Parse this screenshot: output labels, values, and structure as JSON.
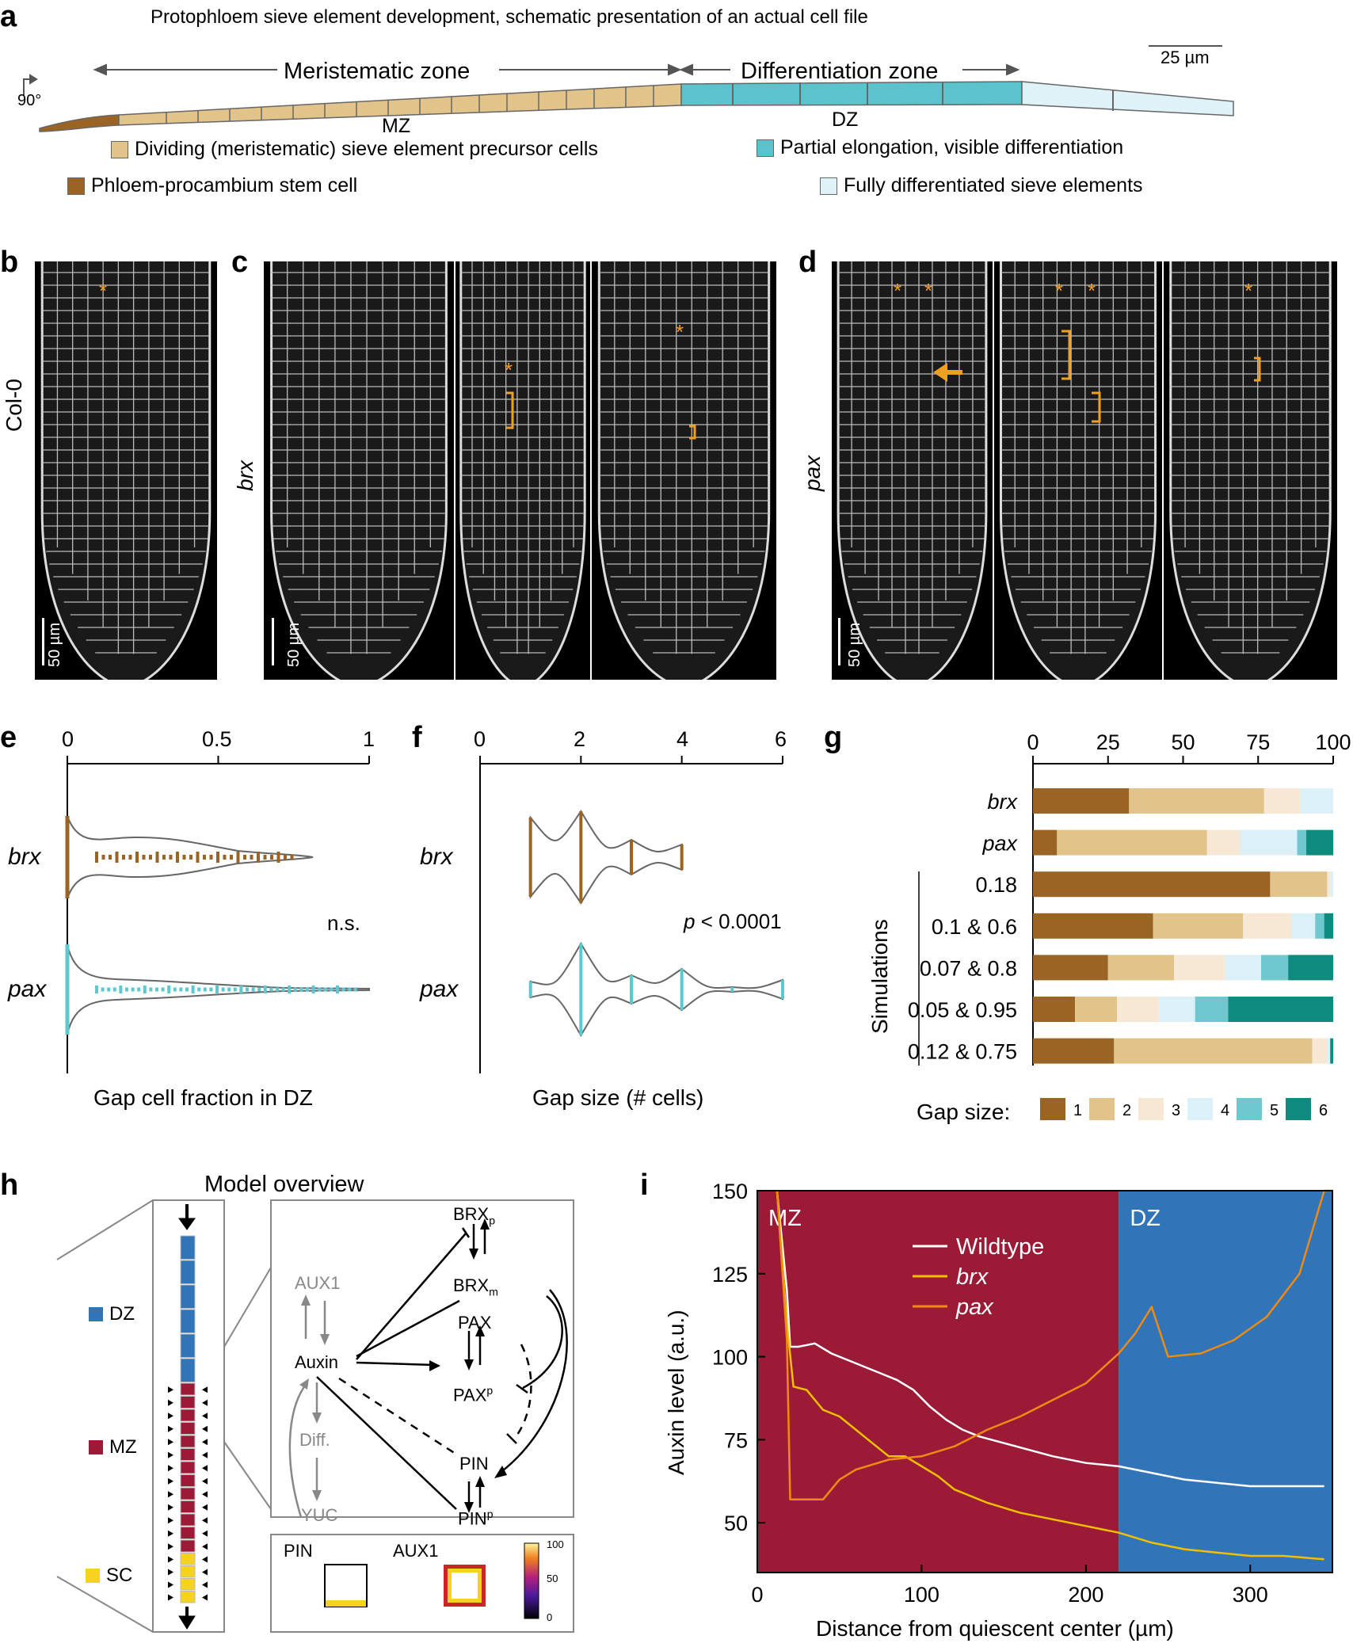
{
  "panel_labels": {
    "a": "a",
    "b": "b",
    "c": "c",
    "d": "d",
    "e": "e",
    "f": "f",
    "g": "g",
    "h": "h",
    "i": "i"
  },
  "panel_a": {
    "title": "Protophloem sieve element development, schematic presentation of an actual cell file",
    "rotation": "90°",
    "meristematic_zone": "Meristematic zone",
    "differentiation_zone": "Differentiation zone",
    "scale": "25 µm",
    "mz": "MZ",
    "dz": "DZ",
    "legend": [
      {
        "label": "Dividing (meristematic) sieve element precursor cells",
        "color": "#e2c48a"
      },
      {
        "label": "Partial elongation, visible differentiation",
        "color": "#5cc2cc"
      },
      {
        "label": "Phloem-procambium stem cell",
        "color": "#9a6424"
      },
      {
        "label": "Fully differentiated sieve elements",
        "color": "#dff2f7"
      }
    ]
  },
  "panel_b": {
    "genotype": "Col-0",
    "scale": "50 µm"
  },
  "panel_c": {
    "genotype": "brx",
    "scale": "50 µm"
  },
  "panel_d": {
    "genotype": "pax",
    "scale": "50 µm"
  },
  "colors": {
    "brx": "#9a6424",
    "pax": "#5cc8d0",
    "annotation": "#f0a020"
  },
  "panel_e": {
    "chart_data": {
      "type": "violin",
      "xlabel": "Gap cell fraction in DZ",
      "ticks": [
        "0",
        "0.5",
        "1"
      ],
      "xlim": [
        0,
        1
      ],
      "categories": [
        "brx",
        "pax"
      ],
      "annotation": "n.s."
    }
  },
  "panel_f": {
    "chart_data": {
      "type": "violin",
      "xlabel": "Gap size (# cells)",
      "ticks": [
        "0",
        "2",
        "4",
        "6"
      ],
      "xlim": [
        0,
        6
      ],
      "categories": [
        "brx",
        "pax"
      ],
      "annotation_p": "p",
      "annotation_rest": " < 0.0001"
    }
  },
  "panel_g": {
    "chart_data": {
      "type": "bar",
      "stacked": true,
      "orientation": "horizontal",
      "ticks": [
        "0",
        "25",
        "50",
        "75",
        "100"
      ],
      "xlim": [
        0,
        100
      ],
      "categories": [
        "brx",
        "pax",
        "0.18",
        "0.1 & 0.6",
        "0.07 & 0.8",
        "0.05 & 0.95",
        "0.12 & 0.75"
      ],
      "group_label": "Simulations",
      "legend_title": "Gap size:",
      "series": [
        {
          "name": "1",
          "color": "#9a6424",
          "values": [
            32,
            8,
            79,
            40,
            25,
            14,
            27
          ]
        },
        {
          "name": "2",
          "color": "#e2c48a",
          "values": [
            45,
            50,
            19,
            30,
            22,
            14,
            66
          ]
        },
        {
          "name": "3",
          "color": "#f6e8d4",
          "values": [
            12,
            11,
            1,
            16,
            17,
            14,
            5
          ]
        },
        {
          "name": "4",
          "color": "#dcf1f7",
          "values": [
            11,
            19,
            1,
            8,
            12,
            12,
            1
          ]
        },
        {
          "name": "5",
          "color": "#6fc7cf",
          "values": [
            0,
            3,
            0,
            3,
            9,
            11,
            0
          ]
        },
        {
          "name": "6",
          "color": "#0e8a7e",
          "values": [
            0,
            9,
            0,
            3,
            15,
            35,
            1
          ]
        }
      ]
    }
  },
  "panel_h": {
    "title": "Model overview",
    "dz": "DZ",
    "mz": "MZ",
    "sc": "SC",
    "nodes": {
      "brx_p": "BRX",
      "brx_p_sub": "p",
      "aux1": "AUX1",
      "brx_m": "BRX",
      "brx_m_sub": "m",
      "pax": "PAX",
      "auxin": "Auxin",
      "pax_p": "PAX",
      "pax_p_sup": "p",
      "diff": "Diff.",
      "pin": "PIN",
      "yuc": "YUC",
      "pin_p": "PIN",
      "pin_p_sup": "p"
    },
    "inset_pin": "PIN",
    "inset_aux1": "AUX1",
    "colorbar_ticks": [
      "100",
      "50",
      "0"
    ],
    "colors": {
      "dz": "#3274b8",
      "mz": "#9b1b36",
      "sc": "#f5d21f",
      "gray": "#808080"
    }
  },
  "panel_i": {
    "chart_data": {
      "type": "line",
      "xlabel": "Distance from quiescent center (µm)",
      "ylabel": "Auxin level (a.u.)",
      "xlim": [
        0,
        350
      ],
      "ylim": [
        35,
        150
      ],
      "xticks": [
        "0",
        "100",
        "200",
        "300"
      ],
      "yticks": [
        "50",
        "75",
        "100",
        "125",
        "150"
      ],
      "zones": [
        {
          "label": "MZ",
          "from": 0,
          "to": 220,
          "color": "#9b1b36"
        },
        {
          "label": "DZ",
          "from": 220,
          "to": 350,
          "color": "#3274b8"
        }
      ],
      "series": [
        {
          "name": "Wildtype",
          "color": "#ffffff",
          "x": [
            12,
            18,
            20,
            25,
            35,
            45,
            55,
            65,
            75,
            85,
            95,
            105,
            115,
            125,
            135,
            150,
            165,
            180,
            200,
            220,
            240,
            260,
            280,
            300,
            320,
            345
          ],
          "y": [
            150,
            120,
            103,
            103,
            104,
            101,
            99,
            97,
            95,
            93,
            90,
            85,
            81,
            78,
            76,
            74,
            72,
            70,
            68,
            67,
            65,
            63,
            62,
            61,
            61,
            61
          ]
        },
        {
          "name": "brx",
          "color": "#f0c000",
          "x": [
            12,
            18,
            22,
            30,
            40,
            50,
            60,
            70,
            80,
            90,
            100,
            110,
            120,
            140,
            160,
            180,
            200,
            220,
            240,
            260,
            280,
            300,
            320,
            345
          ],
          "y": [
            150,
            110,
            91,
            90,
            84,
            82,
            78,
            74,
            70,
            70,
            67,
            64,
            60,
            56,
            53,
            51,
            49,
            47,
            44,
            42,
            41,
            40,
            40,
            39
          ]
        },
        {
          "name": "pax",
          "color": "#f08a10",
          "x": [
            12,
            18,
            20,
            25,
            40,
            50,
            60,
            80,
            100,
            120,
            140,
            160,
            180,
            200,
            220,
            230,
            240,
            250,
            270,
            290,
            310,
            330,
            345,
            350
          ],
          "y": [
            150,
            105,
            57,
            57,
            57,
            63,
            66,
            69,
            70,
            73,
            78,
            82,
            87,
            92,
            101,
            107,
            115,
            100,
            101,
            105,
            112,
            125,
            150,
            150
          ]
        }
      ]
    }
  }
}
